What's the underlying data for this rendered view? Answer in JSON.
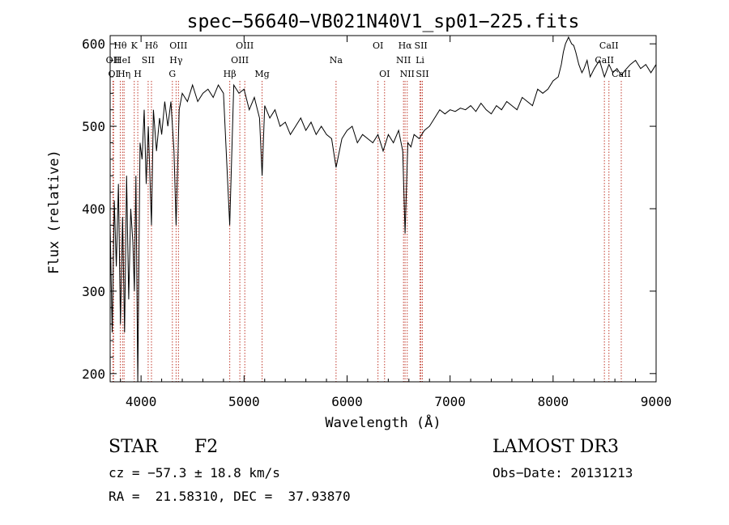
{
  "chart_data": {
    "type": "line",
    "title": "spec−56640−VB021N40V1_sp01−225.fits",
    "xlabel": "Wavelength (Å)",
    "ylabel": "Flux (relative)",
    "xlim": [
      3700,
      9000
    ],
    "ylim": [
      190,
      610
    ],
    "x_ticks": [
      4000,
      5000,
      6000,
      7000,
      8000,
      9000
    ],
    "y_ticks": [
      200,
      300,
      400,
      500,
      600
    ],
    "line_color": "#000000",
    "marker_color": "#c0392b",
    "series": [
      {
        "name": "flux",
        "x": [
          3700,
          3720,
          3740,
          3760,
          3780,
          3800,
          3820,
          3840,
          3860,
          3880,
          3900,
          3920,
          3935,
          3950,
          3968,
          3990,
          4010,
          4030,
          4050,
          4070,
          4101,
          4120,
          4150,
          4180,
          4200,
          4230,
          4260,
          4290,
          4320,
          4340,
          4370,
          4400,
          4450,
          4500,
          4550,
          4600,
          4650,
          4700,
          4750,
          4800,
          4861,
          4900,
          4950,
          5000,
          5050,
          5100,
          5150,
          5175,
          5200,
          5250,
          5300,
          5350,
          5400,
          5450,
          5500,
          5550,
          5600,
          5650,
          5700,
          5750,
          5800,
          5850,
          5893,
          5950,
          6000,
          6050,
          6100,
          6150,
          6200,
          6250,
          6300,
          6350,
          6400,
          6450,
          6500,
          6540,
          6563,
          6590,
          6620,
          6650,
          6700,
          6750,
          6800,
          6850,
          6900,
          6950,
          7000,
          7050,
          7100,
          7150,
          7200,
          7250,
          7300,
          7350,
          7400,
          7450,
          7500,
          7550,
          7600,
          7650,
          7700,
          7750,
          7800,
          7850,
          7900,
          7950,
          8000,
          8050,
          8080,
          8100,
          8120,
          8150,
          8180,
          8200,
          8220,
          8250,
          8280,
          8300,
          8330,
          8360,
          8400,
          8450,
          8498,
          8542,
          8580,
          8620,
          8662,
          8700,
          8750,
          8800,
          8850,
          8900,
          8950,
          9000
        ],
        "values": [
          380,
          250,
          410,
          330,
          430,
          260,
          390,
          250,
          440,
          290,
          400,
          360,
          300,
          440,
          190,
          480,
          460,
          520,
          430,
          500,
          380,
          520,
          470,
          510,
          490,
          530,
          500,
          530,
          470,
          380,
          520,
          540,
          530,
          550,
          530,
          540,
          545,
          535,
          550,
          540,
          380,
          550,
          540,
          545,
          520,
          535,
          510,
          440,
          525,
          510,
          520,
          500,
          505,
          490,
          500,
          510,
          495,
          505,
          490,
          500,
          490,
          485,
          450,
          485,
          495,
          500,
          480,
          490,
          485,
          480,
          490,
          470,
          490,
          480,
          495,
          470,
          370,
          480,
          475,
          490,
          485,
          495,
          500,
          510,
          520,
          515,
          520,
          518,
          522,
          520,
          525,
          518,
          528,
          520,
          515,
          525,
          520,
          530,
          525,
          520,
          535,
          530,
          525,
          545,
          540,
          545,
          555,
          560,
          575,
          590,
          600,
          608,
          600,
          598,
          590,
          575,
          565,
          570,
          580,
          560,
          570,
          580,
          560,
          575,
          565,
          570,
          562,
          568,
          575,
          580,
          570,
          575,
          565,
          575
        ]
      }
    ],
    "line_markers": [
      {
        "label": "Hθ",
        "x": 3798,
        "row": 1
      },
      {
        "label": "OII",
        "x": 3727,
        "row": 2
      },
      {
        "label": "OI",
        "x": 3733,
        "row": 3
      },
      {
        "label": "HeI",
        "x": 3820,
        "row": 2
      },
      {
        "label": "Hη",
        "x": 3835,
        "row": 3
      },
      {
        "label": "K",
        "x": 3934,
        "row": 1
      },
      {
        "label": "SII",
        "x": 4069,
        "row": 2
      },
      {
        "label": "H",
        "x": 3968,
        "row": 3
      },
      {
        "label": "Hδ",
        "x": 4101,
        "row": 1
      },
      {
        "label": "OIII",
        "x": 4363,
        "row": 1
      },
      {
        "label": "Hγ",
        "x": 4340,
        "row": 2
      },
      {
        "label": "G",
        "x": 4304,
        "row": 3
      },
      {
        "label": "OIII",
        "x": 5007,
        "row": 1
      },
      {
        "label": "OIII",
        "x": 4959,
        "row": 2
      },
      {
        "label": "Hβ",
        "x": 4861,
        "row": 3
      },
      {
        "label": "Mg",
        "x": 5175,
        "row": 3
      },
      {
        "label": "Na",
        "x": 5893,
        "row": 2
      },
      {
        "label": "OI",
        "x": 6300,
        "row": 1
      },
      {
        "label": "OI",
        "x": 6364,
        "row": 3
      },
      {
        "label": "Hα",
        "x": 6563,
        "row": 1
      },
      {
        "label": "SII",
        "x": 6717,
        "row": 1
      },
      {
        "label": "NII",
        "x": 6548,
        "row": 2
      },
      {
        "label": "Li",
        "x": 6708,
        "row": 2
      },
      {
        "label": "NII",
        "x": 6584,
        "row": 3
      },
      {
        "label": "SII",
        "x": 6731,
        "row": 3
      },
      {
        "label": "CaII",
        "x": 8542,
        "row": 1
      },
      {
        "label": "CaII",
        "x": 8498,
        "row": 2
      },
      {
        "label": "CaII",
        "x": 8662,
        "row": 3
      }
    ]
  },
  "info": {
    "object_type": "STAR",
    "subclass": "F2",
    "survey": "LAMOST DR3",
    "cz": "cz = −57.3 ± 18.8 km/s",
    "obs_date": "Obs−Date: 20131213",
    "coords": "RA =  21.58310, DEC =  37.93870"
  }
}
